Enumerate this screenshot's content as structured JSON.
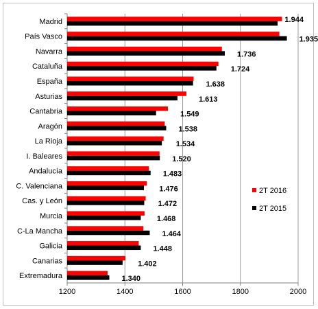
{
  "chart_data": {
    "type": "bar",
    "orientation": "horizontal",
    "categories": [
      "Madrid",
      "País Vasco",
      "Navarra",
      "Cataluña",
      "España",
      "Asturias",
      "Cantabria",
      "Aragón",
      "La Rioja",
      "I. Baleares",
      "Andalucía",
      "C. Valenciana",
      "Cas. y León",
      "Murcia",
      "C-La Mancha",
      "Galicia",
      "Canarias",
      "Extremadura"
    ],
    "series": [
      {
        "name": "2T 2016",
        "color": "#ff0000",
        "values": [
          1944,
          1935,
          1736,
          1724,
          1638,
          1613,
          1549,
          1538,
          1534,
          1520,
          1483,
          1476,
          1472,
          1468,
          1464,
          1448,
          1402,
          1340
        ]
      },
      {
        "name": "2T 2015",
        "color": "#000000",
        "values": [
          1929,
          1961,
          1746,
          1717,
          1636,
          1582,
          1508,
          1543,
          1528,
          1521,
          1489,
          1466,
          1467,
          1455,
          1486,
          1455,
          1392,
          1346
        ]
      }
    ],
    "data_labels": [
      "1.944",
      "1.935",
      "1.736",
      "1.724",
      "1.638",
      "1.613",
      "1.549",
      "1.538",
      "1.534",
      "1.520",
      "1.483",
      "1.476",
      "1.472",
      "1.468",
      "1.464",
      "1.448",
      "1.402",
      "1.340"
    ],
    "xlim": [
      1200,
      2000
    ],
    "xticks": [
      "1200",
      "1400",
      "1600",
      "1800",
      "2000"
    ],
    "grid": "vertical",
    "legend": "right",
    "title": "",
    "xlabel": "",
    "ylabel": ""
  }
}
